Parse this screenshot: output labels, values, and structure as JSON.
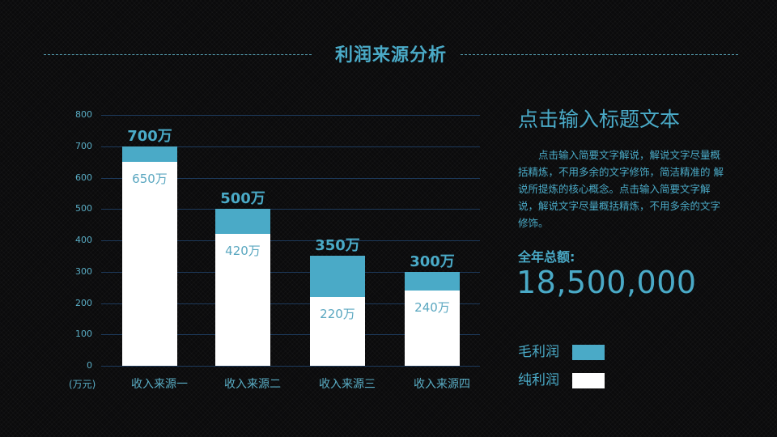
{
  "page": {
    "title": "利润来源分析"
  },
  "chart_data": {
    "type": "bar",
    "stacked": "overlay",
    "title": "利润来源分析",
    "xlabel": "",
    "ylabel": "(万元)",
    "ylim": [
      0,
      800
    ],
    "yticks": [
      0,
      100,
      200,
      300,
      400,
      500,
      600,
      700,
      800
    ],
    "grid": true,
    "legend_position": "right",
    "categories": [
      "收入来源一",
      "收入来源二",
      "收入来源三",
      "收入来源四"
    ],
    "series": [
      {
        "name": "毛利润",
        "color": "#4aaac7",
        "values": [
          700,
          500,
          350,
          300
        ],
        "labels": [
          "700万",
          "500万",
          "350万",
          "300万"
        ]
      },
      {
        "name": "纯利润",
        "color": "#ffffff",
        "values": [
          650,
          420,
          220,
          240
        ],
        "labels": [
          "650万",
          "420万",
          "220万",
          "240万"
        ]
      }
    ]
  },
  "axis": {
    "unit_label": "(万元)",
    "y_ticks": [
      "0",
      "100",
      "200",
      "300",
      "400",
      "500",
      "600",
      "700",
      "800"
    ]
  },
  "side": {
    "title": "点击输入标题文本",
    "description": "点击输入简要文字解说，解说文字尽量概括精炼，不用多余的文字修饰，简洁精准的 解说所提炼的核心概念。点击输入简要文字解说，解说文字尽量概括精炼，不用多余的文字修饰。",
    "total_caption": "全年总额:",
    "total_value": "18,500,000"
  },
  "legend": {
    "items": [
      {
        "label": "毛利润",
        "color": "#4aaac7"
      },
      {
        "label": "纯利润",
        "color": "#ffffff"
      }
    ]
  },
  "colors": {
    "accent": "#4aaac7",
    "background": "#0b0b0c",
    "gridline": "#1d3a5c"
  }
}
